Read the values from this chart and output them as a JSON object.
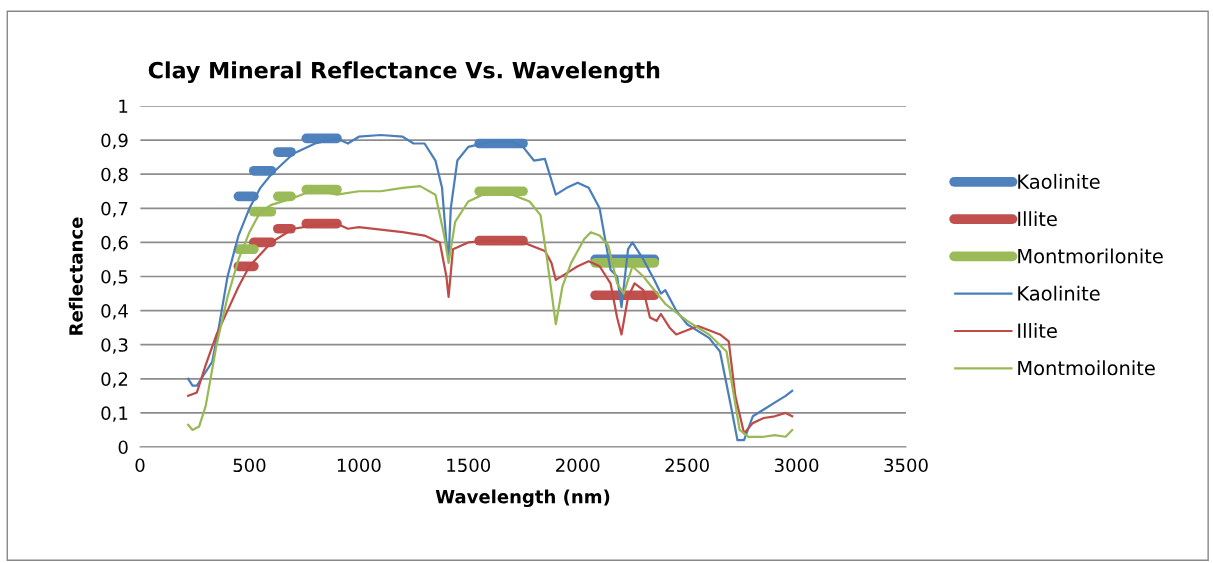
{
  "chart_data": {
    "type": "line",
    "title": "Clay Mineral Reflectance Vs. Wavelength",
    "xlabel": "Wavelength (nm)",
    "ylabel": "Reflectance",
    "xlim": [
      0,
      3500
    ],
    "xticks": [
      0,
      500,
      1000,
      1500,
      2000,
      2500,
      3000,
      3500
    ],
    "ylim": [
      0,
      1
    ],
    "yticks": [
      0,
      {
        "value": 0.1,
        "label": "0,1"
      },
      {
        "value": 0.2,
        "label": "0,2"
      },
      {
        "value": 0.3,
        "label": "0,3"
      },
      {
        "value": 0.4,
        "label": "0,4"
      },
      {
        "value": 0.5,
        "label": "0,5"
      },
      {
        "value": 0.6,
        "label": "0,6"
      },
      {
        "value": 0.7,
        "label": "0,7"
      },
      {
        "value": 0.8,
        "label": "0,8"
      },
      {
        "value": 0.9,
        "label": "0,9"
      },
      1
    ],
    "grid": "y",
    "legend": "right",
    "marker": "none",
    "line_style": "solid",
    "series": [
      {
        "name": "Kaolinite",
        "color": "#4f81bd",
        "x": [
          450,
          520
        ],
        "values": [
          0.735,
          0.735
        ]
      },
      {
        "color": "#4f81bd",
        "x": [
          520,
          600
        ],
        "values": [
          0.81,
          0.81
        ]
      },
      {
        "color": "#4f81bd",
        "x": [
          630,
          690
        ],
        "values": [
          0.865,
          0.865
        ]
      },
      {
        "color": "#4f81bd",
        "x": [
          760,
          900
        ],
        "values": [
          0.905,
          0.905
        ]
      },
      {
        "color": "#4f81bd",
        "x": [
          1550,
          1750
        ],
        "values": [
          0.89,
          0.89
        ]
      },
      {
        "color": "#4f81bd",
        "x": [
          2080,
          2350
        ],
        "values": [
          0.55,
          0.55
        ]
      },
      {
        "name": "Illite",
        "color": "#c0504d",
        "x": [
          450,
          520
        ],
        "values": [
          0.53,
          0.53
        ]
      },
      {
        "color": "#c0504d",
        "x": [
          520,
          600
        ],
        "values": [
          0.6,
          0.6
        ]
      },
      {
        "color": "#c0504d",
        "x": [
          630,
          690
        ],
        "values": [
          0.64,
          0.64
        ]
      },
      {
        "color": "#c0504d",
        "x": [
          760,
          900
        ],
        "values": [
          0.655,
          0.655
        ]
      },
      {
        "color": "#c0504d",
        "x": [
          1550,
          1750
        ],
        "values": [
          0.605,
          0.605
        ]
      },
      {
        "color": "#c0504d",
        "x": [
          2080,
          2350
        ],
        "values": [
          0.445,
          0.445
        ]
      },
      {
        "name": "Montmorilonite",
        "color": "#9bbb59",
        "x": [
          450,
          520
        ],
        "values": [
          0.58,
          0.58
        ]
      },
      {
        "color": "#9bbb59",
        "x": [
          520,
          600
        ],
        "values": [
          0.69,
          0.69
        ]
      },
      {
        "color": "#9bbb59",
        "x": [
          630,
          690
        ],
        "values": [
          0.735,
          0.735
        ]
      },
      {
        "color": "#9bbb59",
        "x": [
          760,
          900
        ],
        "values": [
          0.755,
          0.755
        ]
      },
      {
        "color": "#9bbb59",
        "x": [
          1550,
          1750
        ],
        "values": [
          0.75,
          0.75
        ]
      },
      {
        "color": "#9bbb59",
        "x": [
          2080,
          2350
        ],
        "values": [
          0.54,
          0.54
        ]
      },
      {
        "name": "Kaolinite",
        "color": "#4a7ebb",
        "x": [
          220,
          240,
          260,
          300,
          330,
          360,
          400,
          450,
          500,
          550,
          600,
          700,
          800,
          900,
          950,
          1000,
          1100,
          1200,
          1250,
          1300,
          1350,
          1380,
          1400,
          1410,
          1420,
          1450,
          1500,
          1600,
          1700,
          1750,
          1800,
          1850,
          1900,
          1950,
          2000,
          2050,
          2100,
          2150,
          2180,
          2200,
          2230,
          2250,
          2300,
          2350,
          2380,
          2400,
          2450,
          2500,
          2600,
          2650,
          2700,
          2730,
          2760,
          2800,
          2850,
          2900,
          2950,
          2980
        ],
        "values": [
          0.2,
          0.18,
          0.18,
          0.22,
          0.25,
          0.35,
          0.5,
          0.62,
          0.7,
          0.76,
          0.8,
          0.86,
          0.89,
          0.905,
          0.89,
          0.91,
          0.915,
          0.91,
          0.89,
          0.89,
          0.84,
          0.76,
          0.6,
          0.55,
          0.7,
          0.84,
          0.88,
          0.895,
          0.895,
          0.88,
          0.84,
          0.845,
          0.74,
          0.76,
          0.775,
          0.76,
          0.7,
          0.52,
          0.5,
          0.41,
          0.58,
          0.6,
          0.55,
          0.49,
          0.45,
          0.46,
          0.4,
          0.36,
          0.32,
          0.28,
          0.12,
          0.02,
          0.02,
          0.09,
          0.11,
          0.13,
          0.15,
          0.165
        ]
      },
      {
        "name": "Illite",
        "color": "#be4b48",
        "x": [
          220,
          260,
          300,
          350,
          400,
          450,
          500,
          600,
          700,
          800,
          900,
          950,
          1000,
          1200,
          1300,
          1370,
          1400,
          1410,
          1430,
          1500,
          1600,
          1750,
          1850,
          1880,
          1900,
          1950,
          2000,
          2050,
          2100,
          2150,
          2180,
          2200,
          2230,
          2260,
          2300,
          2330,
          2360,
          2380,
          2420,
          2450,
          2550,
          2650,
          2690,
          2720,
          2760,
          2800,
          2850,
          2900,
          2950,
          2980
        ],
        "values": [
          0.15,
          0.16,
          0.24,
          0.33,
          0.4,
          0.47,
          0.53,
          0.6,
          0.64,
          0.65,
          0.655,
          0.64,
          0.645,
          0.63,
          0.62,
          0.6,
          0.5,
          0.44,
          0.58,
          0.6,
          0.605,
          0.6,
          0.575,
          0.54,
          0.49,
          0.51,
          0.53,
          0.545,
          0.53,
          0.48,
          0.38,
          0.33,
          0.44,
          0.48,
          0.46,
          0.38,
          0.37,
          0.39,
          0.35,
          0.33,
          0.355,
          0.33,
          0.31,
          0.15,
          0.04,
          0.07,
          0.085,
          0.09,
          0.1,
          0.09
        ]
      },
      {
        "name": "Montmoilonite",
        "color": "#98b954",
        "x": [
          220,
          240,
          270,
          300,
          350,
          400,
          450,
          500,
          550,
          600,
          700,
          800,
          900,
          1000,
          1100,
          1200,
          1280,
          1350,
          1390,
          1410,
          1440,
          1500,
          1600,
          1700,
          1780,
          1830,
          1860,
          1900,
          1930,
          1970,
          2030,
          2060,
          2100,
          2140,
          2180,
          2210,
          2250,
          2300,
          2400,
          2500,
          2600,
          2680,
          2740,
          2780,
          2850,
          2900,
          2950,
          2980
        ],
        "values": [
          0.065,
          0.05,
          0.06,
          0.12,
          0.3,
          0.44,
          0.55,
          0.63,
          0.69,
          0.71,
          0.73,
          0.755,
          0.74,
          0.75,
          0.75,
          0.76,
          0.765,
          0.74,
          0.62,
          0.54,
          0.66,
          0.72,
          0.75,
          0.74,
          0.72,
          0.68,
          0.55,
          0.36,
          0.47,
          0.54,
          0.61,
          0.63,
          0.62,
          0.59,
          0.48,
          0.45,
          0.53,
          0.5,
          0.42,
          0.37,
          0.33,
          0.28,
          0.05,
          0.03,
          0.03,
          0.035,
          0.03,
          0.05
        ]
      }
    ]
  }
}
